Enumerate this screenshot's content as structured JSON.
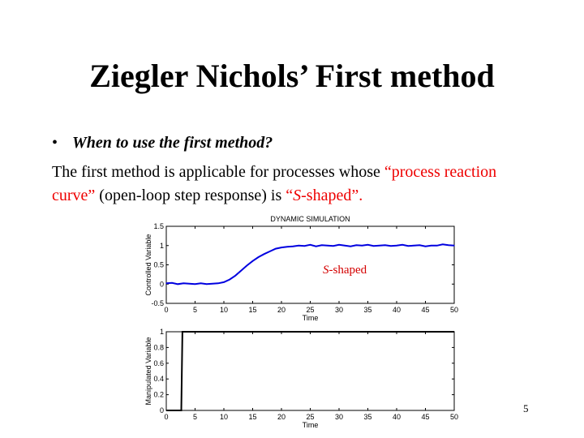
{
  "slide": {
    "title": "Ziegler Nichols’ First method",
    "bullet_marker": "•",
    "bullet_text": "When to use the first method?",
    "para_part1": "The first method is applicable for processes whose ",
    "para_red1": "“process reaction curve”",
    "para_part2": " (open-loop step response) is ",
    "para_red2_open": "“",
    "para_red2_s": "S",
    "para_red2_close": "-shaped”.",
    "page_number": "5"
  },
  "chart_data": [
    {
      "type": "line",
      "title": "DYNAMIC SIMULATION",
      "xlabel": "Time",
      "ylabel": "Controlled Variable",
      "xlim": [
        0,
        50
      ],
      "ylim": [
        -0.5,
        1.5
      ],
      "xticks": [
        "0",
        "5",
        "10",
        "15",
        "20",
        "25",
        "30",
        "35",
        "40",
        "45",
        "50"
      ],
      "yticks": [
        "-0.5",
        "0",
        "0.5",
        "1",
        "1.5"
      ],
      "annotation_s": "S",
      "annotation_rest": "-shaped",
      "color": "#0000e0",
      "series": [
        {
          "x": [
            0,
            1,
            2,
            3,
            4,
            5,
            6,
            7,
            8,
            9,
            10,
            11,
            12,
            13,
            14,
            15,
            16,
            17,
            18,
            19,
            20,
            21,
            22,
            23,
            24,
            25,
            26,
            27,
            28,
            29,
            30,
            31,
            32,
            33,
            34,
            35,
            36,
            37,
            38,
            39,
            40,
            41,
            42,
            43,
            44,
            45,
            46,
            47,
            48,
            49,
            50
          ],
          "values": [
            0.02,
            0.03,
            0.0,
            0.02,
            0.01,
            0.0,
            0.02,
            0.0,
            0.01,
            0.02,
            0.05,
            0.12,
            0.22,
            0.35,
            0.48,
            0.6,
            0.7,
            0.78,
            0.85,
            0.92,
            0.95,
            0.97,
            0.98,
            1.0,
            0.99,
            1.02,
            0.98,
            1.01,
            1.0,
            0.99,
            1.02,
            1.0,
            0.98,
            1.01,
            1.0,
            1.02,
            0.99,
            1.0,
            1.01,
            0.99,
            1.0,
            1.02,
            0.99,
            1.0,
            1.01,
            0.98,
            1.0,
            1.0,
            1.03,
            1.01,
            1.0
          ]
        }
      ]
    },
    {
      "type": "line",
      "title": "",
      "xlabel": "Time",
      "ylabel": "Manipulated Variable",
      "xlim": [
        0,
        50
      ],
      "ylim": [
        0,
        1
      ],
      "xticks": [
        "0",
        "5",
        "10",
        "15",
        "20",
        "25",
        "30",
        "35",
        "40",
        "45",
        "50"
      ],
      "yticks": [
        "0",
        "0.2",
        "0.4",
        "0.6",
        "0.8",
        "1"
      ],
      "color": "#000000",
      "series": [
        {
          "x": [
            0,
            2.6,
            2.6,
            2.8,
            3.0,
            50
          ],
          "values": [
            0,
            0,
            0,
            1,
            1,
            1
          ]
        }
      ]
    }
  ]
}
